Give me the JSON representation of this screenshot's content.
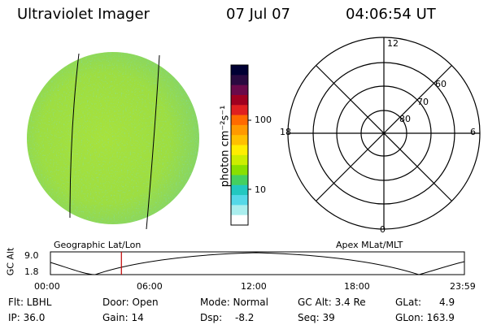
{
  "header": {
    "title": "Ultraviolet Imager",
    "date": "07 Jul 07",
    "time": "04:06:54 UT"
  },
  "colorbar": {
    "unit_label": "photon cm⁻²s⁻¹",
    "ticks": [
      "100",
      "10"
    ],
    "colors": [
      "#000033",
      "#2a0a40",
      "#6a0a4a",
      "#a00020",
      "#e02020",
      "#ff6a00",
      "#ff9900",
      "#ffc000",
      "#ffee00",
      "#ccee00",
      "#88e000",
      "#44d060",
      "#22c8c0",
      "#55d8e8",
      "#aaeeee",
      "#ffffff"
    ]
  },
  "polar_plot": {
    "mlt_labels": {
      "top": "12",
      "left": "18",
      "right": "6",
      "bottom": "0"
    },
    "lat_labels": [
      "60",
      "70",
      "80"
    ]
  },
  "timeline": {
    "left_title": "Geographic Lat/Lon",
    "right_title": "Apex MLat/MLT",
    "y_axis_label": "GC Alt",
    "y_ticks": [
      "9.0",
      "1.8"
    ],
    "x_ticks": [
      "00:00",
      "06:00",
      "12:00",
      "18:00",
      "23:59"
    ],
    "marker_time_hours": 4.115
  },
  "info": {
    "flt": "Flt: LBHL",
    "ip": "IP: 36.0",
    "door": "Door: Open",
    "gain": "Gain: 14",
    "mode": "Mode: Normal",
    "dsp_label": "Dsp:",
    "dsp_value": "-8.2",
    "gcalt": "GC Alt: 3.4 Re",
    "seq": "Seq: 39",
    "glat_label": "GLat:",
    "glat_value": "4.9",
    "glon": "GLon: 163.9"
  }
}
